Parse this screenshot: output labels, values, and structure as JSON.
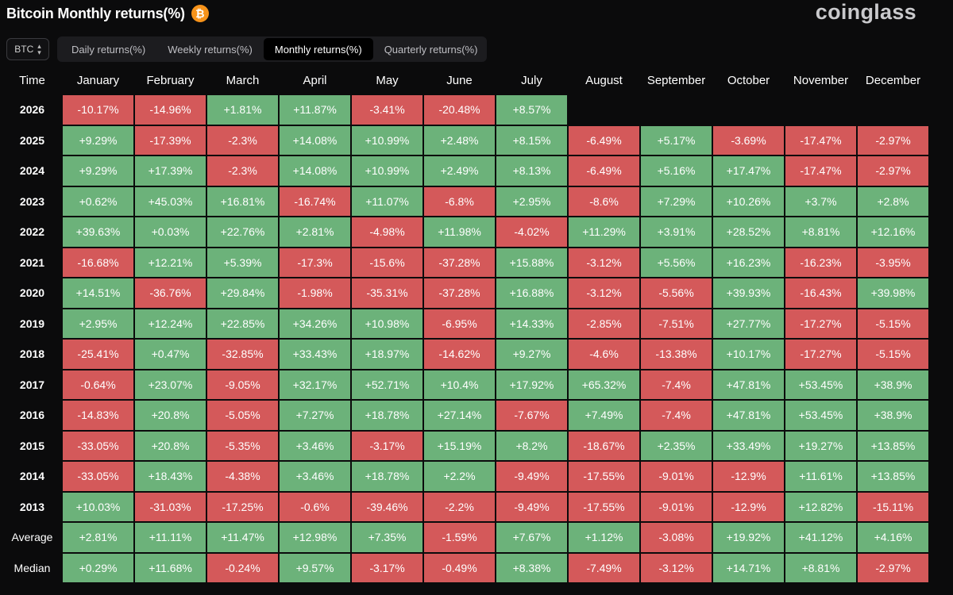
{
  "header": {
    "title": "Bitcoin Monthly returns(%)",
    "coin_icon_glyph": "₿",
    "brand": "coinglass"
  },
  "asset_select": {
    "value": "BTC"
  },
  "tabs": [
    {
      "label": "Daily returns(%)",
      "active": false
    },
    {
      "label": "Weekly returns(%)",
      "active": false
    },
    {
      "label": "Monthly returns(%)",
      "active": true
    },
    {
      "label": "Quarterly returns(%)",
      "active": false
    }
  ],
  "colors": {
    "positive": "#6cb27a",
    "negative": "#d4595a",
    "background": "#0b0b0c"
  },
  "table": {
    "columns": [
      "Time",
      "January",
      "February",
      "March",
      "April",
      "May",
      "June",
      "July",
      "August",
      "September",
      "October",
      "November",
      "December"
    ],
    "rows": [
      {
        "label": "2026",
        "cells": [
          "-10.17%",
          "-14.96%",
          "+1.81%",
          "+11.87%",
          "-3.41%",
          "-20.48%",
          "+8.57%",
          "",
          "",
          "",
          "",
          ""
        ]
      },
      {
        "label": "2025",
        "cells": [
          "+9.29%",
          "-17.39%",
          "-2.3%",
          "+14.08%",
          "+10.99%",
          "+2.48%",
          "+8.15%",
          "-6.49%",
          "+5.17%",
          "-3.69%",
          "-17.47%",
          "-2.97%"
        ]
      },
      {
        "label": "2024",
        "cells": [
          "+9.29%",
          "+17.39%",
          "-2.3%",
          "+14.08%",
          "+10.99%",
          "+2.49%",
          "+8.13%",
          "-6.49%",
          "+5.16%",
          "+17.47%",
          "-17.47%",
          "-2.97%"
        ]
      },
      {
        "label": "2023",
        "cells": [
          "+0.62%",
          "+45.03%",
          "+16.81%",
          "-16.74%",
          "+11.07%",
          "-6.8%",
          "+2.95%",
          "-8.6%",
          "+7.29%",
          "+10.26%",
          "+3.7%",
          "+2.8%"
        ]
      },
      {
        "label": "2022",
        "cells": [
          "+39.63%",
          "+0.03%",
          "+22.76%",
          "+2.81%",
          "-4.98%",
          "+11.98%",
          "-4.02%",
          "+11.29%",
          "+3.91%",
          "+28.52%",
          "+8.81%",
          "+12.16%"
        ]
      },
      {
        "label": "2021",
        "cells": [
          "-16.68%",
          "+12.21%",
          "+5.39%",
          "-17.3%",
          "-15.6%",
          "-37.28%",
          "+15.88%",
          "-3.12%",
          "+5.56%",
          "+16.23%",
          "-16.23%",
          "-3.95%"
        ]
      },
      {
        "label": "2020",
        "cells": [
          "+14.51%",
          "-36.76%",
          "+29.84%",
          "-1.98%",
          "-35.31%",
          "-37.28%",
          "+16.88%",
          "-3.12%",
          "-5.56%",
          "+39.93%",
          "-16.43%",
          "+39.98%"
        ]
      },
      {
        "label": "2019",
        "cells": [
          "+2.95%",
          "+12.24%",
          "+22.85%",
          "+34.26%",
          "+10.98%",
          "-6.95%",
          "+14.33%",
          "-2.85%",
          "-7.51%",
          "+27.77%",
          "-17.27%",
          "-5.15%"
        ]
      },
      {
        "label": "2018",
        "cells": [
          "-25.41%",
          "+0.47%",
          "-32.85%",
          "+33.43%",
          "+18.97%",
          "-14.62%",
          "+9.27%",
          "-4.6%",
          "-13.38%",
          "+10.17%",
          "-17.27%",
          "-5.15%"
        ]
      },
      {
        "label": "2017",
        "cells": [
          "-0.64%",
          "+23.07%",
          "-9.05%",
          "+32.17%",
          "+52.71%",
          "+10.4%",
          "+17.92%",
          "+65.32%",
          "-7.4%",
          "+47.81%",
          "+53.45%",
          "+38.9%"
        ]
      },
      {
        "label": "2016",
        "cells": [
          "-14.83%",
          "+20.8%",
          "-5.05%",
          "+7.27%",
          "+18.78%",
          "+27.14%",
          "-7.67%",
          "+7.49%",
          "-7.4%",
          "+47.81%",
          "+53.45%",
          "+38.9%"
        ]
      },
      {
        "label": "2015",
        "cells": [
          "-33.05%",
          "+20.8%",
          "-5.35%",
          "+3.46%",
          "-3.17%",
          "+15.19%",
          "+8.2%",
          "-18.67%",
          "+2.35%",
          "+33.49%",
          "+19.27%",
          "+13.85%"
        ]
      },
      {
        "label": "2014",
        "cells": [
          "-33.05%",
          "+18.43%",
          "-4.38%",
          "+3.46%",
          "+18.78%",
          "+2.2%",
          "-9.49%",
          "-17.55%",
          "-9.01%",
          "-12.9%",
          "+11.61%",
          "+13.85%"
        ]
      },
      {
        "label": "2013",
        "cells": [
          "+10.03%",
          "-31.03%",
          "-17.25%",
          "-0.6%",
          "-39.46%",
          "-2.2%",
          "-9.49%",
          "-17.55%",
          "-9.01%",
          "-12.9%",
          "+12.82%",
          "-15.11%"
        ]
      }
    ],
    "summary_rows": [
      {
        "label": "Average",
        "cells": [
          "+2.81%",
          "+11.11%",
          "+11.47%",
          "+12.98%",
          "+7.35%",
          "-1.59%",
          "+7.67%",
          "+1.12%",
          "-3.08%",
          "+19.92%",
          "+41.12%",
          "+4.16%"
        ]
      },
      {
        "label": "Median",
        "cells": [
          "+0.29%",
          "+11.68%",
          "-0.24%",
          "+9.57%",
          "-3.17%",
          "-0.49%",
          "+8.38%",
          "-7.49%",
          "-3.12%",
          "+14.71%",
          "+8.81%",
          "-2.97%"
        ]
      }
    ]
  }
}
